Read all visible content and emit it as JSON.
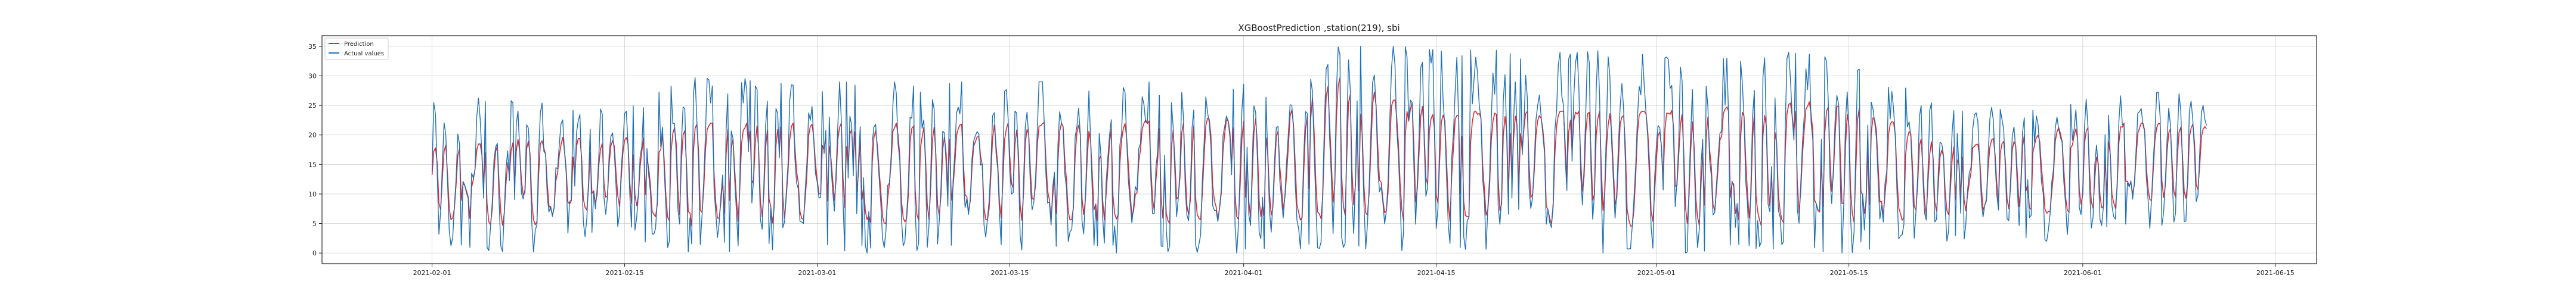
{
  "chart_data": {
    "type": "line",
    "title": "XGBoostPrediction ,station(219), sbi",
    "xlabel": "",
    "ylabel": "",
    "x_range": [
      "2021-01-24",
      "2021-06-18"
    ],
    "y_range": [
      -1.8,
      36.8
    ],
    "x_ticks": [
      "2021-02-01",
      "2021-02-15",
      "2021-03-01",
      "2021-03-15",
      "2021-04-01",
      "2021-04-15",
      "2021-05-01",
      "2021-05-15",
      "2021-06-01",
      "2021-06-15"
    ],
    "y_ticks": [
      0,
      5,
      10,
      15,
      20,
      25,
      30,
      35
    ],
    "data_start": "2021-02-01",
    "data_end": "2021-06-10",
    "grid": true,
    "legend_position": "top-left",
    "series": [
      {
        "name": "Prediction",
        "color": "#e8272a",
        "envelope": [
          {
            "date": "2021-02-01",
            "low": 6,
            "high": 18
          },
          {
            "date": "2021-02-08",
            "low": 4,
            "high": 20
          },
          {
            "date": "2021-02-14",
            "low": 8,
            "high": 19
          },
          {
            "date": "2021-02-20",
            "low": 4,
            "high": 22
          },
          {
            "date": "2021-03-01",
            "low": 5,
            "high": 22
          },
          {
            "date": "2021-03-15",
            "low": 5,
            "high": 22
          },
          {
            "date": "2021-04-01",
            "low": 5,
            "high": 23
          },
          {
            "date": "2021-04-08",
            "low": 6,
            "high": 30
          },
          {
            "date": "2021-04-15",
            "low": 5,
            "high": 24
          },
          {
            "date": "2021-05-01",
            "low": 4,
            "high": 24
          },
          {
            "date": "2021-05-15",
            "low": 5,
            "high": 26
          },
          {
            "date": "2021-05-22",
            "low": 6,
            "high": 18
          },
          {
            "date": "2021-06-01",
            "low": 7,
            "high": 22
          },
          {
            "date": "2021-06-10",
            "low": 9,
            "high": 22
          }
        ]
      },
      {
        "name": "Actual values",
        "color": "#1f6fb4",
        "envelope": [
          {
            "date": "2021-02-01",
            "low": 1,
            "high": 26
          },
          {
            "date": "2021-02-08",
            "low": 0,
            "high": 27
          },
          {
            "date": "2021-02-14",
            "low": 3,
            "high": 24
          },
          {
            "date": "2021-02-20",
            "low": 0,
            "high": 30
          },
          {
            "date": "2021-03-01",
            "low": 0,
            "high": 29
          },
          {
            "date": "2021-03-15",
            "low": 0,
            "high": 29
          },
          {
            "date": "2021-04-01",
            "low": 0,
            "high": 29
          },
          {
            "date": "2021-04-08",
            "low": 1,
            "high": 35
          },
          {
            "date": "2021-04-15",
            "low": 0,
            "high": 35
          },
          {
            "date": "2021-05-01",
            "low": 0,
            "high": 34
          },
          {
            "date": "2021-05-15",
            "low": 0,
            "high": 34
          },
          {
            "date": "2021-05-22",
            "low": 2,
            "high": 24
          },
          {
            "date": "2021-06-01",
            "low": 2,
            "high": 26
          },
          {
            "date": "2021-06-10",
            "low": 6,
            "high": 28
          }
        ]
      }
    ]
  }
}
